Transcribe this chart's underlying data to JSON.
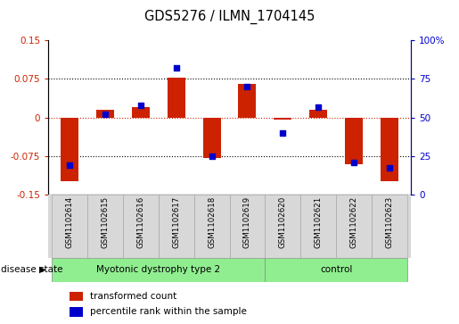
{
  "title": "GDS5276 / ILMN_1704145",
  "samples": [
    "GSM1102614",
    "GSM1102615",
    "GSM1102616",
    "GSM1102617",
    "GSM1102618",
    "GSM1102619",
    "GSM1102620",
    "GSM1102621",
    "GSM1102622",
    "GSM1102623"
  ],
  "red_bars": [
    -0.125,
    0.015,
    0.02,
    0.077,
    -0.079,
    0.065,
    -0.005,
    0.015,
    -0.092,
    -0.125
  ],
  "blue_dots": [
    19,
    52,
    58,
    82,
    25,
    70,
    40,
    57,
    21,
    17
  ],
  "ylim_left": [
    -0.15,
    0.15
  ],
  "ylim_right": [
    0,
    100
  ],
  "yticks_left": [
    -0.15,
    -0.075,
    0,
    0.075,
    0.15
  ],
  "yticks_right": [
    0,
    25,
    50,
    75,
    100
  ],
  "n_disease": 6,
  "n_control": 4,
  "group_labels": [
    "Myotonic dystrophy type 2",
    "control"
  ],
  "group_color": "#90EE90",
  "disease_state_label": "disease state",
  "red_color": "#CC2200",
  "blue_color": "#0000CC",
  "bar_width": 0.5,
  "legend_red": "transformed count",
  "legend_blue": "percentile rank within the sample",
  "hline_zero_color": "#CC2200",
  "dotted_color": "black",
  "cell_bg_color": "#d8d8d8",
  "plot_bg": "#ffffff"
}
